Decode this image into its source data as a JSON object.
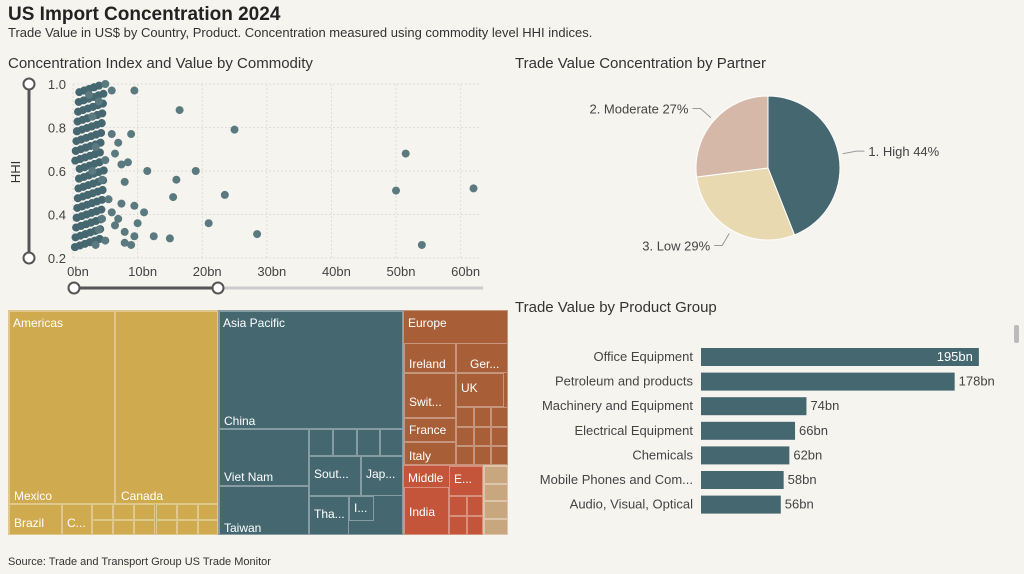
{
  "title": "US Import Concentration 2024",
  "subtitle": "Trade Value in US$ by Country, Product. Concentration measured using commodity level HHI indices.",
  "source": "Source: Trade and Transport Group US Trade Monitor",
  "colors": {
    "teal": "#456770",
    "gold": "#cfaa4f",
    "brown": "#a85f37",
    "red": "#c4553a",
    "tan": "#d6b8a8",
    "beige": "#e8d9b1",
    "background": "#f6f4ef"
  },
  "chart_data": [
    {
      "type": "scatter",
      "title": "Concentration Index and Value by Commodity",
      "xlabel": "",
      "ylabel": "HHI",
      "xlim": [
        0,
        63
      ],
      "ylim": [
        0.2,
        1.0
      ],
      "x_ticks": [
        "0bn",
        "10bn",
        "20bn",
        "30bn",
        "40bn",
        "50bn",
        "60bn"
      ],
      "y_ticks": [
        "0.2",
        "0.4",
        "0.6",
        "0.8",
        "1.0"
      ],
      "grid": true,
      "points": [
        {
          "x": 5,
          "y": 1.0
        },
        {
          "x": 6,
          "y": 0.97
        },
        {
          "x": 9.5,
          "y": 0.97
        },
        {
          "x": 16.5,
          "y": 0.88
        },
        {
          "x": 25,
          "y": 0.79
        },
        {
          "x": 4,
          "y": 0.92
        },
        {
          "x": 3,
          "y": 0.85
        },
        {
          "x": 7,
          "y": 0.73
        },
        {
          "x": 7.5,
          "y": 0.63
        },
        {
          "x": 5,
          "y": 0.65
        },
        {
          "x": 8,
          "y": 0.55
        },
        {
          "x": 11.5,
          "y": 0.6
        },
        {
          "x": 16,
          "y": 0.56
        },
        {
          "x": 19,
          "y": 0.6
        },
        {
          "x": 15.5,
          "y": 0.48
        },
        {
          "x": 23.5,
          "y": 0.49
        },
        {
          "x": 51.5,
          "y": 0.68
        },
        {
          "x": 50,
          "y": 0.51
        },
        {
          "x": 62,
          "y": 0.52
        },
        {
          "x": 54,
          "y": 0.26
        },
        {
          "x": 7.5,
          "y": 0.45
        },
        {
          "x": 9.5,
          "y": 0.44
        },
        {
          "x": 11,
          "y": 0.41
        },
        {
          "x": 6,
          "y": 0.41
        },
        {
          "x": 21,
          "y": 0.36
        },
        {
          "x": 28.5,
          "y": 0.31
        },
        {
          "x": 8,
          "y": 0.32
        },
        {
          "x": 9.5,
          "y": 0.3
        },
        {
          "x": 12.5,
          "y": 0.3
        },
        {
          "x": 15,
          "y": 0.29
        },
        {
          "x": 8,
          "y": 0.27
        },
        {
          "x": 9,
          "y": 0.26
        },
        {
          "x": 4,
          "y": 0.33
        },
        {
          "x": 5,
          "y": 0.28
        },
        {
          "x": 3.5,
          "y": 0.26
        },
        {
          "x": 6.5,
          "y": 0.35
        },
        {
          "x": 7,
          "y": 0.38
        },
        {
          "x": 4.5,
          "y": 0.56
        },
        {
          "x": 3,
          "y": 0.6
        },
        {
          "x": 6,
          "y": 0.77
        },
        {
          "x": 6.5,
          "y": 0.68
        },
        {
          "x": 8.5,
          "y": 0.64
        },
        {
          "x": 9,
          "y": 0.77
        },
        {
          "x": 5.5,
          "y": 0.47
        },
        {
          "x": 10,
          "y": 0.36
        },
        {
          "x": 3.5,
          "y": 0.71
        },
        {
          "x": 4.5,
          "y": 0.38
        },
        {
          "x": 2.5,
          "y": 0.95
        }
      ]
    },
    {
      "type": "pie",
      "title": "Trade Value Concentration by Partner",
      "slices": [
        {
          "label": "1. High 44%",
          "value": 44,
          "color": "#456770"
        },
        {
          "label": "3. Low 29%",
          "value": 29,
          "color": "#e8d9b1"
        },
        {
          "label": "2. Moderate 27%",
          "value": 27,
          "color": "#d6b8a8"
        }
      ]
    },
    {
      "type": "bar",
      "orientation": "horizontal",
      "title": "Trade Value by Product Group",
      "categories": [
        "Office Equipment",
        "Petroleum and products",
        "Machinery and Equipment",
        "Electrical Equipment",
        "Chemicals",
        "Mobile Phones and Com...",
        "Audio, Visual, Optical"
      ],
      "values": [
        195,
        178,
        74,
        66,
        62,
        58,
        56
      ],
      "value_labels": [
        "195bn",
        "178bn",
        "74bn",
        "66bn",
        "62bn",
        "58bn",
        "56bn"
      ],
      "xlim": [
        0,
        200
      ],
      "color": "#456770"
    },
    {
      "type": "treemap",
      "groups": [
        {
          "name": "Americas",
          "color": "#cfaa4f",
          "children": [
            {
              "name": "Mexico"
            },
            {
              "name": "Canada"
            },
            {
              "name": "Brazil"
            },
            {
              "name": "C..."
            }
          ]
        },
        {
          "name": "Asia Pacific",
          "color": "#456770",
          "children": [
            {
              "name": "China"
            },
            {
              "name": "Viet Nam"
            },
            {
              "name": "Taiwan"
            },
            {
              "name": "Sout..."
            },
            {
              "name": "Jap..."
            },
            {
              "name": "Tha..."
            },
            {
              "name": "I..."
            }
          ]
        },
        {
          "name": "Europe",
          "color": "#a85f37",
          "children": [
            {
              "name": "Ireland"
            },
            {
              "name": "Ger..."
            },
            {
              "name": "Swit..."
            },
            {
              "name": "UK"
            },
            {
              "name": "France"
            },
            {
              "name": "Italy"
            }
          ]
        },
        {
          "name": "Middle",
          "color": "#c4553a",
          "children": [
            {
              "name": "India"
            },
            {
              "name": "E..."
            }
          ]
        }
      ]
    }
  ]
}
